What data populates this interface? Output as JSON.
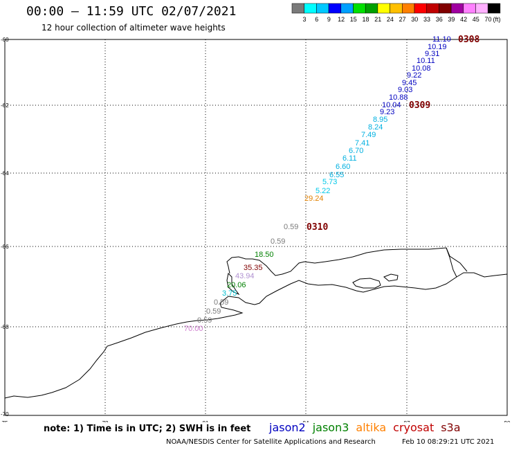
{
  "header": {
    "title": "00:00 — 11:59 UTC 02/07/2021",
    "subtitle": "12 hour collection of altimeter wave heights"
  },
  "legend": {
    "colors": [
      "#7a7a7a",
      "#00ffff",
      "#00c8ff",
      "#0000ff",
      "#00a0ff",
      "#00e000",
      "#00a000",
      "#ffff00",
      "#ffc000",
      "#ff8000",
      "#ff0000",
      "#c00000",
      "#800000",
      "#a000a0",
      "#ff80ff",
      "#ffb0ff",
      "#000000"
    ],
    "labels": [
      "3",
      "6",
      "9",
      "12",
      "15",
      "18",
      "21",
      "24",
      "27",
      "30",
      "33",
      "36",
      "39",
      "42",
      "45",
      "70"
    ],
    "unit": "(ft)"
  },
  "axes": {
    "x_ticks": [
      "75",
      "78",
      "81",
      "84",
      "87",
      "90"
    ],
    "y_ticks": [
      "-60",
      "-62",
      "-64",
      "-66",
      "-68",
      "-70"
    ]
  },
  "passes": [
    {
      "label": "0308",
      "color": "#800000"
    },
    {
      "label": "0309",
      "color": "#800000"
    },
    {
      "label": "0310",
      "color": "#800000"
    }
  ],
  "observations": [
    {
      "v": "11.10",
      "c": "#0000c0"
    },
    {
      "v": "10.19",
      "c": "#0000c0"
    },
    {
      "v": "9.31",
      "c": "#0000c0"
    },
    {
      "v": "10.11",
      "c": "#0000c0"
    },
    {
      "v": "10.08",
      "c": "#0000c0"
    },
    {
      "v": "9.22",
      "c": "#0000c0"
    },
    {
      "v": "9.45",
      "c": "#0000c0"
    },
    {
      "v": "9.03",
      "c": "#0000c0"
    },
    {
      "v": "10.88",
      "c": "#0000c0"
    },
    {
      "v": "10.04",
      "c": "#0000c0"
    },
    {
      "v": "9.23",
      "c": "#0000c0"
    },
    {
      "v": "8.95",
      "c": "#00b0e0"
    },
    {
      "v": "8.24",
      "c": "#00b0e0"
    },
    {
      "v": "7.49",
      "c": "#00b0e0"
    },
    {
      "v": "7.41",
      "c": "#00b0e0"
    },
    {
      "v": "6.70",
      "c": "#00b0e0"
    },
    {
      "v": "6.11",
      "c": "#00b0e0"
    },
    {
      "v": "6.60",
      "c": "#00b0e0"
    },
    {
      "v": "6.55",
      "c": "#00b0e0"
    },
    {
      "v": "5.73",
      "c": "#00c8e8"
    },
    {
      "v": "5.22",
      "c": "#00c8e8"
    },
    {
      "v": "29.24",
      "c": "#e08000"
    },
    {
      "v": "0.59",
      "c": "#7a7a7a"
    },
    {
      "v": "0.59",
      "c": "#7a7a7a"
    },
    {
      "v": "18.50",
      "c": "#008000"
    },
    {
      "v": "35.35",
      "c": "#800000"
    },
    {
      "v": "43.94",
      "c": "#b090d0"
    },
    {
      "v": "20.06",
      "c": "#008000"
    },
    {
      "v": "3.75",
      "c": "#00c0d0"
    },
    {
      "v": "0.59",
      "c": "#7a7a7a"
    },
    {
      "v": "0.59",
      "c": "#7a7a7a"
    },
    {
      "v": "0.59",
      "c": "#7a7a7a"
    },
    {
      "v": "70.00",
      "c": "#d080d0"
    }
  ],
  "note": "note: 1) Time is in UTC; 2) SWH is in feet",
  "satellites": [
    {
      "name": "jason2",
      "color": "#0000c0"
    },
    {
      "name": "jason3",
      "color": "#008000"
    },
    {
      "name": "altika",
      "color": "#ff8000"
    },
    {
      "name": "cryosat",
      "color": "#c00000"
    },
    {
      "name": "s3a",
      "color": "#800000"
    }
  ],
  "footer": {
    "credit": "NOAA/NESDIS Center for Satellite Applications and Research",
    "timestamp": "Feb 10 08:29:21 UTC 2021"
  }
}
